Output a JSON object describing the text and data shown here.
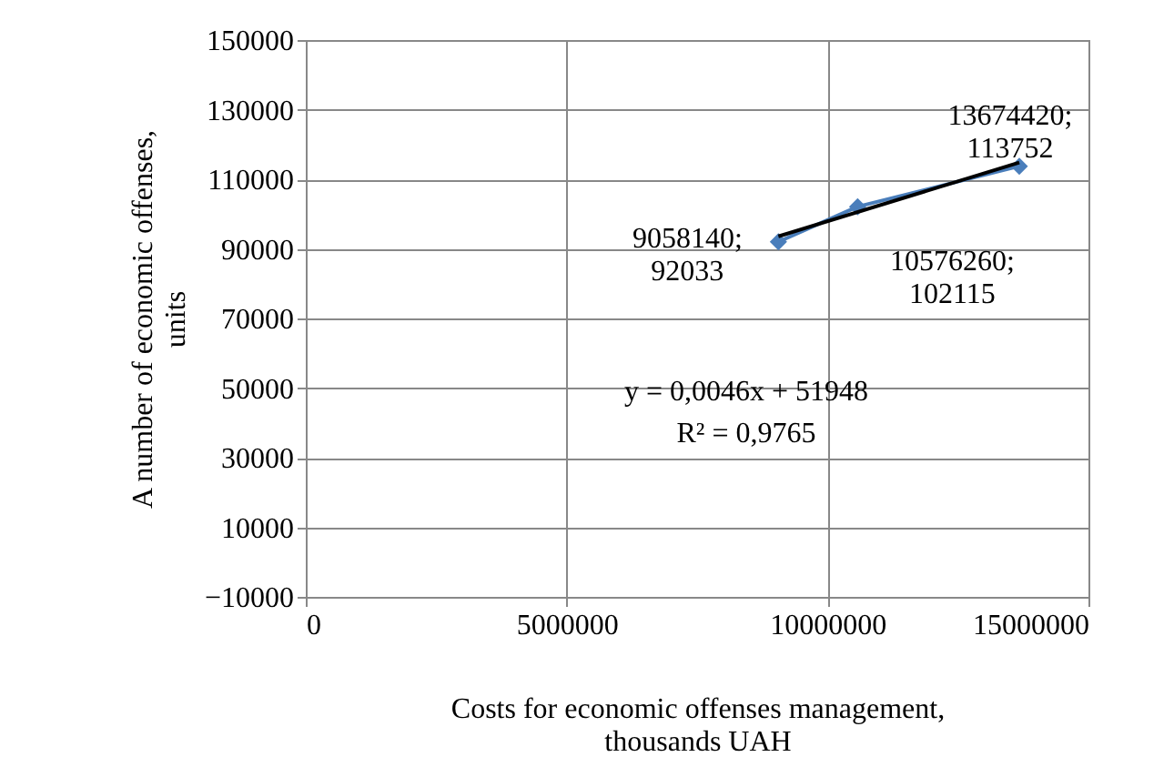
{
  "chart_data": {
    "type": "line",
    "xlabel": "Costs for economic offenses management, thousands UAH",
    "ylabel": "A number of economic offenses, units",
    "xlim": [
      0,
      15000000
    ],
    "xticks": [
      0,
      5000000,
      10000000,
      15000000
    ],
    "ylim": [
      -10000,
      150000
    ],
    "yticks": [
      -10000,
      10000,
      30000,
      50000,
      70000,
      90000,
      110000,
      130000,
      150000
    ],
    "grid": true,
    "legend": false,
    "marker": "diamond",
    "series": [
      {
        "type": "line",
        "color": "#4a7ebb",
        "x": [
          9058140,
          10576260,
          13674420
        ],
        "values": [
          92033,
          102115,
          113752
        ],
        "value_labels": [
          "9058140; 92033",
          "10576260; 102115",
          "13674420; 113752"
        ]
      },
      {
        "type": "line",
        "color": "#000000",
        "marker": "none",
        "x": [
          9058140,
          13674420
        ],
        "values": [
          93600,
          114800
        ]
      }
    ],
    "annotations": [
      "y = 0,0046x + 51948",
      "R² = 0,9765"
    ]
  }
}
